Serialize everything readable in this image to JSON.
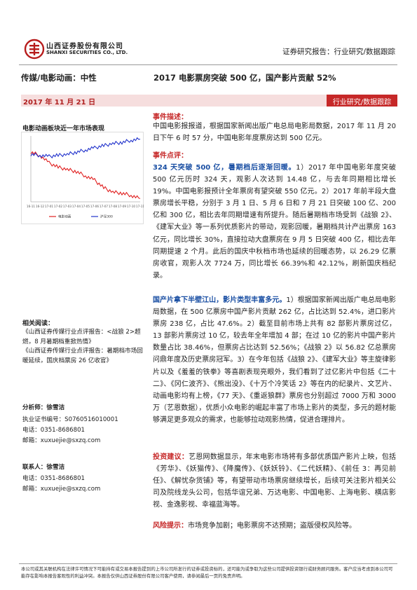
{
  "header": {
    "company_cn": "山西证券股份有限公司",
    "company_en": "SHANXI SECURITIES CO., LTD.",
    "report_type": "证券研究报告：行业研究/数据跟踪"
  },
  "title_row": {
    "sector": "传媒/电影动画：中性",
    "title": "2017 电影票房突破 500 亿，国产影片贡献 52%"
  },
  "date_bar": {
    "date": "2017 年 11 月 21 日",
    "tag": "行业研究/数据跟踪"
  },
  "left": {
    "chart_title": "电影动画板块近一年市场表现",
    "related_title": "相关阅读：",
    "related": [
      "《山西证券传媒行业点评报告：<战狼 2>超燃，8 月暑期档重掀热情》",
      "《山西证券传媒行业点评报告：暑期档市场回暖延续，国庆档票房 26 亿收官》"
    ],
    "analyst": {
      "title": "分析师：徐雪洁",
      "cert": "执业证书编号：S0760516010001",
      "tel": "电话：0351-8686801",
      "email": "邮箱：xuxuejie@sxzq.com"
    },
    "contact": {
      "title": "联系人：徐雪洁",
      "tel": "电话：0351-8686801",
      "email": "邮箱：xuxuejie@sxzq.com"
    }
  },
  "chart_data": {
    "type": "line",
    "title": "",
    "x": [
      "16-11",
      "16-12",
      "17-01",
      "17-02",
      "17-03",
      "17-04",
      "17-05",
      "17-06",
      "17-07",
      "17-08",
      "17-09",
      "17-10",
      "17-11"
    ],
    "series": [
      {
        "name": "电影动画",
        "color": "#e02020",
        "values": [
          2,
          -1,
          -8,
          -12,
          -14,
          -16,
          -20,
          -24,
          -31,
          -35,
          -36,
          -38,
          -41
        ]
      },
      {
        "name": "沪深300",
        "color": "#2233cc",
        "values": [
          0,
          -1,
          -2,
          -1,
          0,
          2,
          4,
          6,
          8,
          10,
          11,
          13,
          14
        ]
      }
    ],
    "legend": "bottom",
    "grid": false
  },
  "body": {
    "event_desc_title": "事件描述：",
    "event_desc": "中国电影报报道，根据国家新闻出版广电总局电影局数据，2017 年 11 月 20 日下午 6 时 57 分，中国电影年度票房达到 500 亿元。",
    "event_comment_title": "事件点评：",
    "p1_head": "324 天突破 500 亿，暑期档后逐渐回暖。",
    "p1_text": "1）2017 年中国电影年度突破 500 亿元历时 324 天，观影人次达到 14.48 亿，与去年同期相比增长 19%。中国电影报预计全年票房有望突破 550 亿元。2）2017 年前半段大盘票房增长平稳，分别于 3 月 1 日、5 月 6 日和 7 月 21 日突破 100 亿、200 亿和 300 亿，相比去年同期增速有所提升。随后暑期档市场受到《战狼 2》、《建军大业》等一系列优质影片的带动，观影回暖，暑期档共计产出票房 163 亿元，同比增长 30%，直接拉动大盘票房在 9 月 5 日突破 400 亿，相比去年同期提速 2 个月。此后的国庆中秋档市场也延续的回暖态势，以 26.29 亿票房收官，观影人次 7724 万，同比增长 66.39%和 42.12%，刷新国庆档纪录。",
    "p2_head": "国产片拿下半壁江山，影片类型丰富多元。",
    "p2_text": "1）根据国家新闻出版广电总局电影局数据，在 500 亿票房中国产影片贡献 262 亿，占比达到 52.4%，进口影片票房 238 亿，占比 47.6%。2）截至目前市场上共有 82 部影片票房过亿，13 部影片票房过 10 亿，较去年全年增加 4 部；在过 10 亿的影片中国产影片数量占比 38.46%，但票房占比达到 52.56%；《战狼 2》以 56.82 亿总票房问鼎年度及历史票房冠军。3）在今年包括《战狼 2》、《建军大业》等主旋律影片以及《羞羞的铁拳》等喜剧表现亮眼外，我们看到了过亿影片中包括《二十二》、《冈仁波齐》、《熊出没》、《十万个冷笑话 2》等在内的纪录片、文艺片、动画电影均有上榜，《77 天》、《重返狼群》票房也分别超过 7000 万和 3000 万（艺恩数据），优质小众电影的崛起丰富了市场上影片的类型，多元的题材能够满足更多观众的需求，也能够拉动观影热情，促进合理排片。",
    "p3_head": "投资建议：",
    "p3_text": "艺恩网数据显示，年末电影市场将有多部优质国产影片上映，包括《芳华》、《妖猫传》、《降魔传》、《妖妖铃》、《二代妖精》、《前任 3：再见前任》、《解忧杂货铺》等，有望带动市场票房继续增长，后续可关注影片相关公司及院线龙头公司，包括华谊兄弟、万达电影、中国电影、上海电影、横店影视、金逸影视、幸福蓝海等。",
    "p4_head": "风险提示：",
    "p4_text": "市场竞争加剧；电影票房不达预期；盗版侵权风险等。"
  },
  "footer": {
    "disclaimer": "本公司或其关联机构在法律许可情况下可能持有或交易本报告提到的上市公司所发行的证券或投资标的，还可能为或争取为这些公司提供投资银行或财务顾问服务。客户应当考虑到本公司可能存在影响本报告客观性的利益冲突。本报告仅供山西证券股份有限公司客户使用，请参阅最后一页的免责声明。"
  },
  "colors": {
    "accent_red": "#c62828",
    "highlight_blue": "#1a4fa3"
  }
}
